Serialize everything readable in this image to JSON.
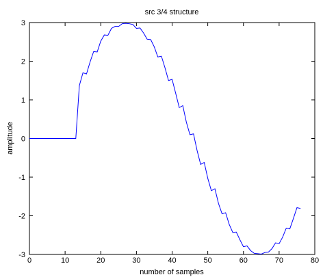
{
  "chart_data": {
    "type": "line",
    "title": "src 3/4 structure",
    "xlabel": "number of samples",
    "ylabel": "amplitude",
    "xlim": [
      0,
      80
    ],
    "ylim": [
      -3,
      3
    ],
    "xticks": [
      0,
      10,
      20,
      30,
      40,
      50,
      60,
      70,
      80
    ],
    "yticks": [
      -3,
      -2,
      -1,
      0,
      1,
      2,
      3
    ],
    "grid": false,
    "line_color": "#0000ff",
    "series": [
      {
        "x": [
          0,
          1,
          2,
          3,
          4,
          5,
          6,
          7,
          8,
          9,
          10,
          11,
          12,
          13,
          14,
          15,
          16,
          17,
          18,
          19,
          20,
          21,
          22,
          23,
          24,
          25,
          26,
          27,
          28,
          29,
          30,
          31,
          32,
          33,
          34,
          35,
          36,
          37,
          38,
          39,
          40,
          41,
          42,
          43,
          44,
          45,
          46,
          47,
          48,
          49,
          50,
          51,
          52,
          53,
          54,
          55,
          56,
          57,
          58,
          59,
          60,
          61,
          62,
          63,
          64,
          65,
          66,
          67,
          68,
          69,
          70,
          71,
          72,
          73,
          74,
          75,
          76
        ],
        "y": [
          0,
          0,
          0,
          0,
          0,
          0,
          0,
          0,
          0,
          0,
          0,
          0,
          0,
          0,
          1.37,
          1.7,
          1.67,
          1.98,
          2.25,
          2.24,
          2.52,
          2.68,
          2.67,
          2.85,
          2.9,
          2.9,
          2.97,
          2.98,
          2.97,
          2.95,
          2.85,
          2.86,
          2.73,
          2.57,
          2.56,
          2.37,
          2.11,
          2.13,
          1.83,
          1.5,
          1.53,
          1.17,
          0.8,
          0.85,
          0.42,
          0.1,
          0.12,
          -0.31,
          -0.67,
          -0.62,
          -1.03,
          -1.35,
          -1.3,
          -1.68,
          -1.95,
          -1.92,
          -2.22,
          -2.43,
          -2.42,
          -2.62,
          -2.8,
          -2.78,
          -2.9,
          -2.97,
          -2.98,
          -2.99,
          -2.95,
          -2.94,
          -2.85,
          -2.7,
          -2.72,
          -2.55,
          -2.32,
          -2.34,
          -2.07,
          -1.79,
          -1.81
        ]
      }
    ]
  }
}
